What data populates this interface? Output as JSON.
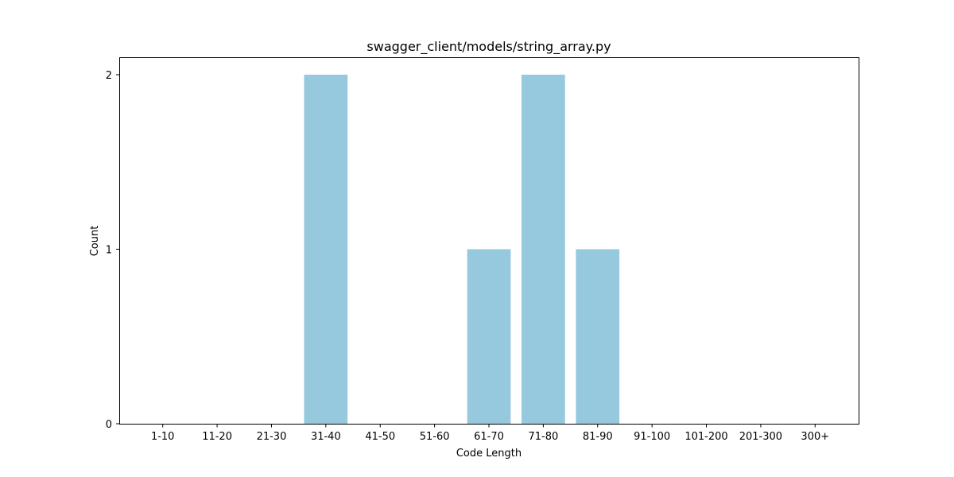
{
  "chart_data": {
    "type": "bar",
    "title": "swagger_client/models/string_array.py",
    "xlabel": "Code Length",
    "ylabel": "Count",
    "categories": [
      "1-10",
      "11-20",
      "21-30",
      "31-40",
      "41-50",
      "51-60",
      "61-70",
      "71-80",
      "81-90",
      "91-100",
      "101-200",
      "201-300",
      "300+"
    ],
    "values": [
      0,
      0,
      0,
      2,
      0,
      0,
      1,
      2,
      1,
      0,
      0,
      0,
      0
    ],
    "yticks": [
      0,
      1,
      2
    ],
    "ylim": [
      0,
      2.1
    ],
    "grid": false,
    "bar_color": "#96c9de"
  }
}
